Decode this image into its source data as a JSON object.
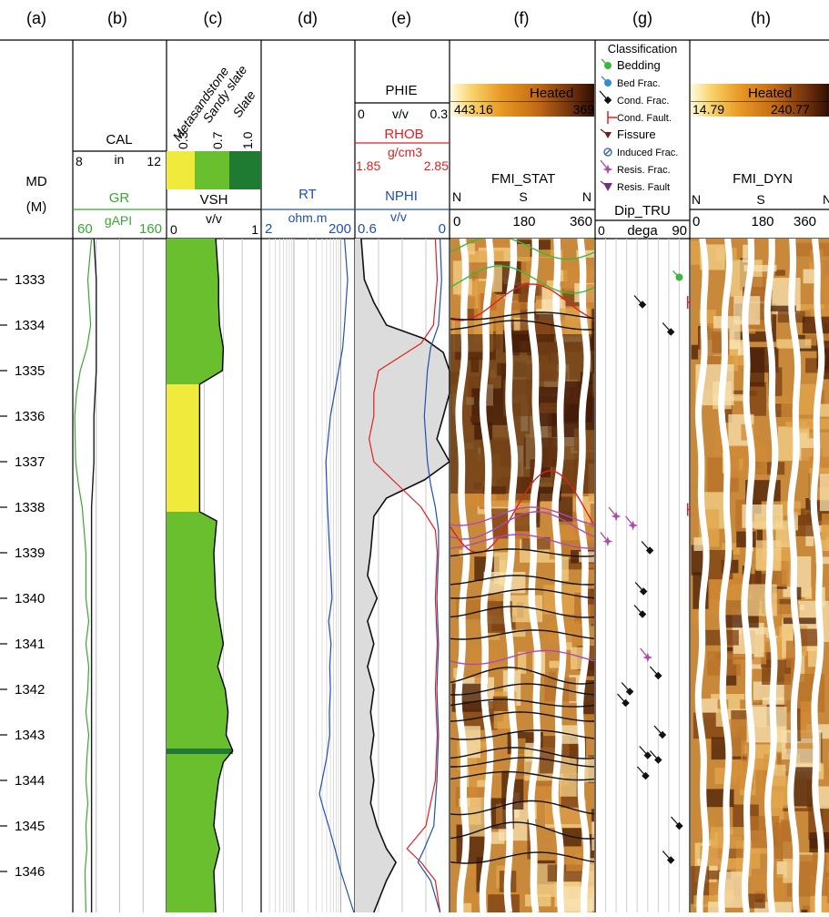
{
  "panels": {
    "a": "(a)",
    "b": "(b)",
    "c": "(c)",
    "d": "(d)",
    "e": "(e)",
    "f": "(f)",
    "g": "(g)",
    "h": "(h)"
  },
  "header": {
    "md_label": "MD",
    "md_unit": "(M)",
    "cal": {
      "label": "CAL",
      "min": "8",
      "unit": "in",
      "max": "12"
    },
    "gr": {
      "label": "GR",
      "min": "60",
      "unit": "gAPI",
      "max": "160"
    },
    "vsh": {
      "label": "VSH",
      "unit": "v/v",
      "min": "0",
      "max": "1",
      "lithologies": [
        "Metasandstone",
        "Sandy slate",
        "Slate"
      ],
      "cutoffs": [
        "0.3",
        "0.7",
        "1.0"
      ]
    },
    "rt": {
      "label": "RT",
      "unit": "ohm.m",
      "min": "2",
      "max": "200"
    },
    "phie": {
      "label": "PHIE",
      "min": "0",
      "unit": "v/v",
      "max": "0.3"
    },
    "rhob": {
      "label": "RHOB",
      "unit": "g/cm3",
      "min": "1.85",
      "max": "2.85"
    },
    "nphi": {
      "label": "NPHI",
      "unit": "v/v",
      "min": "0.6",
      "max": "0"
    },
    "fmi_stat": {
      "palette": "Heated",
      "pmin": "443.16",
      "pmax": "369",
      "label": "FMI_STAT",
      "n1": "N",
      "s": "S",
      "n2": "N",
      "a0": "0",
      "a180": "180",
      "a360": "360"
    },
    "fmi_dyn": {
      "palette": "Heated",
      "pmin": "14.79",
      "pmax": "240.77",
      "label": "FMI_DYN",
      "n1": "N",
      "s": "S",
      "n2": "N",
      "a0": "0",
      "a180": "180",
      "a360": "360"
    },
    "dip": {
      "label": "Dip_TRU",
      "min": "0",
      "unit": "dega",
      "max": "90"
    },
    "classification": {
      "title": "Classification",
      "items": [
        "Bedding",
        "Bed Frac.",
        "Cond. Frac.",
        "Cond. Fault.",
        "Fissure",
        "Induced Frac.",
        "Resis. Frac.",
        "Resis. Fault"
      ]
    }
  },
  "colors": {
    "gr": "#3aa832",
    "cal": "#1a1a1a",
    "rt": "#1f4fb0",
    "rhob": "#e02020",
    "nphi": "#1f4fb0",
    "vsh_sandstone": "#f0ea3c",
    "vsh_sandy_slate": "#6abf2e",
    "vsh_slate": "#1f7a32",
    "phie_fill": "#dcdcdc",
    "bedding": "#3bb83b",
    "bed_frac": "#2f8fd0",
    "cond_frac": "#111111",
    "cond_fault": "#e02020",
    "fissure": "#7a1818",
    "induced_frac": "#2b5fb0",
    "resis_frac": "#b048b0",
    "resis_fault": "#7a2a8a"
  },
  "chart_data": {
    "type": "well_log",
    "depth_unit": "M",
    "depth_range": [
      1332.1,
      1346.9
    ],
    "depth_ticks": [
      1333,
      1334,
      1335,
      1336,
      1337,
      1338,
      1339,
      1340,
      1341,
      1342,
      1343,
      1344,
      1345,
      1346
    ],
    "tracks": {
      "gr": {
        "range": [
          60,
          160
        ],
        "points": [
          [
            1332.1,
            80
          ],
          [
            1333.0,
            76
          ],
          [
            1334.0,
            79
          ],
          [
            1334.5,
            75
          ],
          [
            1335.0,
            68
          ],
          [
            1335.5,
            64
          ],
          [
            1336.0,
            62
          ],
          [
            1337.0,
            63
          ],
          [
            1337.5,
            66
          ],
          [
            1338.0,
            70
          ],
          [
            1338.5,
            72
          ],
          [
            1339.0,
            74
          ],
          [
            1340.0,
            74
          ],
          [
            1340.5,
            77
          ],
          [
            1341.0,
            74
          ],
          [
            1341.5,
            77
          ],
          [
            1342.0,
            76
          ],
          [
            1342.5,
            74
          ],
          [
            1343.0,
            77
          ],
          [
            1343.5,
            75
          ],
          [
            1344.0,
            74
          ],
          [
            1344.5,
            76
          ],
          [
            1345.0,
            74
          ],
          [
            1345.5,
            75
          ],
          [
            1346.0,
            73
          ],
          [
            1346.9,
            74
          ]
        ]
      },
      "cal": {
        "range": [
          8,
          12
        ],
        "points": [
          [
            1332.1,
            8.9
          ],
          [
            1333.0,
            9.0
          ],
          [
            1334.0,
            9.0
          ],
          [
            1335.0,
            9.0
          ],
          [
            1336.0,
            8.9
          ],
          [
            1337.0,
            8.9
          ],
          [
            1338.0,
            8.8
          ],
          [
            1339.0,
            8.8
          ],
          [
            1340.0,
            8.8
          ],
          [
            1341.0,
            8.8
          ],
          [
            1342.0,
            8.8
          ],
          [
            1343.0,
            8.8
          ],
          [
            1344.0,
            8.8
          ],
          [
            1345.0,
            8.8
          ],
          [
            1346.0,
            8.8
          ],
          [
            1346.9,
            8.8
          ]
        ]
      },
      "vsh": {
        "range": [
          0,
          1
        ],
        "points": [
          [
            1332.1,
            0.52
          ],
          [
            1333.0,
            0.55
          ],
          [
            1333.5,
            0.55
          ],
          [
            1334.0,
            0.56
          ],
          [
            1334.5,
            0.6
          ],
          [
            1335.0,
            0.59
          ],
          [
            1335.3,
            0.35
          ],
          [
            1338.1,
            0.35
          ],
          [
            1338.3,
            0.53
          ],
          [
            1339.0,
            0.5
          ],
          [
            1340.0,
            0.52
          ],
          [
            1341.0,
            0.6
          ],
          [
            1341.5,
            0.54
          ],
          [
            1342.0,
            0.62
          ],
          [
            1342.5,
            0.65
          ],
          [
            1343.0,
            0.63
          ],
          [
            1343.35,
            0.7
          ],
          [
            1343.6,
            0.6
          ],
          [
            1344.0,
            0.55
          ],
          [
            1344.5,
            0.52
          ],
          [
            1345.0,
            0.5
          ],
          [
            1345.5,
            0.56
          ],
          [
            1346.0,
            0.5
          ],
          [
            1346.9,
            0.52
          ]
        ],
        "sandstone_interval": [
          1335.3,
          1338.1
        ],
        "slate_bed": [
          1343.3,
          1343.42
        ]
      },
      "rt": {
        "range": [
          2,
          200
        ],
        "scale": "log",
        "points": [
          [
            1332.1,
            120
          ],
          [
            1333.0,
            140
          ],
          [
            1334.0,
            120
          ],
          [
            1334.5,
            110
          ],
          [
            1335.0,
            90
          ],
          [
            1336.0,
            60
          ],
          [
            1337.0,
            48
          ],
          [
            1338.0,
            52
          ],
          [
            1339.0,
            58
          ],
          [
            1339.5,
            62
          ],
          [
            1340.0,
            65
          ],
          [
            1340.5,
            55
          ],
          [
            1341.0,
            62
          ],
          [
            1341.5,
            58
          ],
          [
            1342.0,
            60
          ],
          [
            1342.5,
            57
          ],
          [
            1343.0,
            58
          ],
          [
            1343.5,
            50
          ],
          [
            1344.0,
            40
          ],
          [
            1344.3,
            35
          ],
          [
            1344.6,
            42
          ],
          [
            1345.0,
            55
          ],
          [
            1345.5,
            75
          ],
          [
            1346.0,
            100
          ],
          [
            1346.9,
            190
          ]
        ]
      },
      "phie": {
        "range": [
          0,
          0.3
        ],
        "points": [
          [
            1332.1,
            0.02
          ],
          [
            1333.0,
            0.03
          ],
          [
            1333.5,
            0.06
          ],
          [
            1334.0,
            0.1
          ],
          [
            1334.3,
            0.22
          ],
          [
            1334.6,
            0.28
          ],
          [
            1335.0,
            0.3
          ],
          [
            1335.5,
            0.3
          ],
          [
            1336.0,
            0.28
          ],
          [
            1336.5,
            0.26
          ],
          [
            1337.0,
            0.3
          ],
          [
            1337.4,
            0.22
          ],
          [
            1337.8,
            0.1
          ],
          [
            1338.2,
            0.06
          ],
          [
            1339.0,
            0.05
          ],
          [
            1339.5,
            0.04
          ],
          [
            1340.0,
            0.07
          ],
          [
            1340.5,
            0.04
          ],
          [
            1341.0,
            0.06
          ],
          [
            1341.5,
            0.04
          ],
          [
            1342.0,
            0.06
          ],
          [
            1342.5,
            0.05
          ],
          [
            1343.0,
            0.06
          ],
          [
            1343.5,
            0.05
          ],
          [
            1344.0,
            0.06
          ],
          [
            1344.5,
            0.05
          ],
          [
            1345.0,
            0.07
          ],
          [
            1345.5,
            0.1
          ],
          [
            1345.8,
            0.13
          ],
          [
            1346.2,
            0.1
          ],
          [
            1346.9,
            0.06
          ]
        ]
      },
      "rhob": {
        "range": [
          1.85,
          2.85
        ],
        "points": [
          [
            1332.1,
            2.7
          ],
          [
            1333.0,
            2.72
          ],
          [
            1334.0,
            2.68
          ],
          [
            1334.4,
            2.55
          ],
          [
            1335.0,
            2.1
          ],
          [
            1335.5,
            2.05
          ],
          [
            1336.0,
            2.05
          ],
          [
            1336.5,
            2.0
          ],
          [
            1337.0,
            2.05
          ],
          [
            1337.5,
            2.3
          ],
          [
            1338.0,
            2.55
          ],
          [
            1338.5,
            2.7
          ],
          [
            1339.0,
            2.72
          ],
          [
            1340.0,
            2.7
          ],
          [
            1341.0,
            2.72
          ],
          [
            1342.0,
            2.7
          ],
          [
            1343.0,
            2.72
          ],
          [
            1344.0,
            2.7
          ],
          [
            1345.0,
            2.6
          ],
          [
            1345.5,
            2.4
          ],
          [
            1345.8,
            2.55
          ],
          [
            1346.2,
            2.7
          ],
          [
            1346.9,
            2.75
          ]
        ]
      },
      "nphi": {
        "range": [
          0.6,
          0
        ],
        "points": [
          [
            1332.1,
            0.06
          ],
          [
            1333.0,
            0.05
          ],
          [
            1334.0,
            0.07
          ],
          [
            1334.5,
            0.12
          ],
          [
            1335.0,
            0.14
          ],
          [
            1335.5,
            0.15
          ],
          [
            1336.0,
            0.16
          ],
          [
            1336.5,
            0.15
          ],
          [
            1337.0,
            0.14
          ],
          [
            1337.5,
            0.12
          ],
          [
            1338.0,
            0.09
          ],
          [
            1338.5,
            0.07
          ],
          [
            1339.0,
            0.07
          ],
          [
            1340.0,
            0.08
          ],
          [
            1341.0,
            0.07
          ],
          [
            1342.0,
            0.08
          ],
          [
            1343.0,
            0.07
          ],
          [
            1344.0,
            0.08
          ],
          [
            1345.0,
            0.1
          ],
          [
            1345.5,
            0.16
          ],
          [
            1345.8,
            0.2
          ],
          [
            1346.2,
            0.12
          ],
          [
            1346.9,
            0.06
          ]
        ]
      },
      "dip_picks": [
        {
          "class": "bedding",
          "depth": 1332.95,
          "dip": 80
        },
        {
          "class": "cond_fault",
          "depth": 1333.5,
          "dip": 88
        },
        {
          "class": "cond_frac",
          "depth": 1333.55,
          "dip": 45
        },
        {
          "class": "cond_frac",
          "depth": 1334.15,
          "dip": 72
        },
        {
          "class": "cond_fault",
          "depth": 1338.05,
          "dip": 88
        },
        {
          "class": "resis_frac",
          "depth": 1338.2,
          "dip": 20
        },
        {
          "class": "resis_frac",
          "depth": 1338.4,
          "dip": 36
        },
        {
          "class": "resis_frac",
          "depth": 1338.75,
          "dip": 12
        },
        {
          "class": "cond_frac",
          "depth": 1338.95,
          "dip": 52
        },
        {
          "class": "cond_frac",
          "depth": 1339.85,
          "dip": 46
        },
        {
          "class": "cond_frac",
          "depth": 1340.35,
          "dip": 45
        },
        {
          "class": "resis_frac",
          "depth": 1341.3,
          "dip": 50
        },
        {
          "class": "cond_frac",
          "depth": 1341.7,
          "dip": 60
        },
        {
          "class": "cond_frac",
          "depth": 1342.05,
          "dip": 33
        },
        {
          "class": "cond_frac",
          "depth": 1342.3,
          "dip": 29
        },
        {
          "class": "cond_frac",
          "depth": 1343.0,
          "dip": 64
        },
        {
          "class": "cond_frac",
          "depth": 1343.45,
          "dip": 50
        },
        {
          "class": "cond_frac",
          "depth": 1343.55,
          "dip": 60
        },
        {
          "class": "cond_frac",
          "depth": 1343.9,
          "dip": 48
        },
        {
          "class": "cond_frac",
          "depth": 1345.0,
          "dip": 80
        },
        {
          "class": "cond_frac",
          "depth": 1345.75,
          "dip": 72
        }
      ]
    },
    "sinusoids": [
      {
        "class": "bedding",
        "depth": 1333.0,
        "amp": 0.3,
        "phase": 1.0
      },
      {
        "class": "bedding",
        "depth": 1332.3,
        "amp": 0.25,
        "phase": 1.2
      },
      {
        "class": "cond_fault",
        "depth": 1333.5,
        "amp": 0.4,
        "phase": -0.4
      },
      {
        "class": "cond_frac",
        "depth": 1334.0,
        "amp": 0.1,
        "phase": 0.3
      },
      {
        "class": "cond_frac",
        "depth": 1333.8,
        "amp": 0.08,
        "phase": -0.8
      },
      {
        "class": "cond_fault",
        "depth": 1338.1,
        "amp": 0.9,
        "phase": -1.2
      },
      {
        "class": "resis_frac",
        "depth": 1338.4,
        "amp": 0.3,
        "phase": -0.6
      },
      {
        "class": "resis_frac",
        "depth": 1338.2,
        "amp": 0.2,
        "phase": -0.4
      },
      {
        "class": "resis_frac",
        "depth": 1338.75,
        "amp": 0.15,
        "phase": 0.2
      },
      {
        "class": "cond_frac",
        "depth": 1339.0,
        "amp": 0.08,
        "phase": 0.5
      },
      {
        "class": "cond_frac",
        "depth": 1339.6,
        "amp": 0.1,
        "phase": 0.3
      },
      {
        "class": "cond_frac",
        "depth": 1339.9,
        "amp": 0.1,
        "phase": -0.3
      },
      {
        "class": "cond_frac",
        "depth": 1340.3,
        "amp": 0.12,
        "phase": 0.4
      },
      {
        "class": "cond_frac",
        "depth": 1340.8,
        "amp": 0.1,
        "phase": -0.5
      },
      {
        "class": "resis_frac",
        "depth": 1341.3,
        "amp": 0.15,
        "phase": -1.0
      },
      {
        "class": "cond_frac",
        "depth": 1341.7,
        "amp": 0.18,
        "phase": 0.6
      },
      {
        "class": "cond_frac",
        "depth": 1342.0,
        "amp": 0.12,
        "phase": -0.2
      },
      {
        "class": "cond_frac",
        "depth": 1342.3,
        "amp": 0.08,
        "phase": 0.9
      },
      {
        "class": "cond_frac",
        "depth": 1342.6,
        "amp": 0.1,
        "phase": 0.1
      },
      {
        "class": "cond_frac",
        "depth": 1343.0,
        "amp": 0.1,
        "phase": -0.6
      },
      {
        "class": "cond_frac",
        "depth": 1343.4,
        "amp": 0.12,
        "phase": 0.4
      },
      {
        "class": "cond_frac",
        "depth": 1343.6,
        "amp": 0.1,
        "phase": -0.1
      },
      {
        "class": "cond_frac",
        "depth": 1343.9,
        "amp": 0.09,
        "phase": 0.7
      },
      {
        "class": "cond_frac",
        "depth": 1344.6,
        "amp": 0.15,
        "phase": -0.4
      },
      {
        "class": "cond_frac",
        "depth": 1345.1,
        "amp": 0.18,
        "phase": 0.3
      },
      {
        "class": "cond_frac",
        "depth": 1345.7,
        "amp": 0.12,
        "phase": -0.7
      }
    ]
  }
}
